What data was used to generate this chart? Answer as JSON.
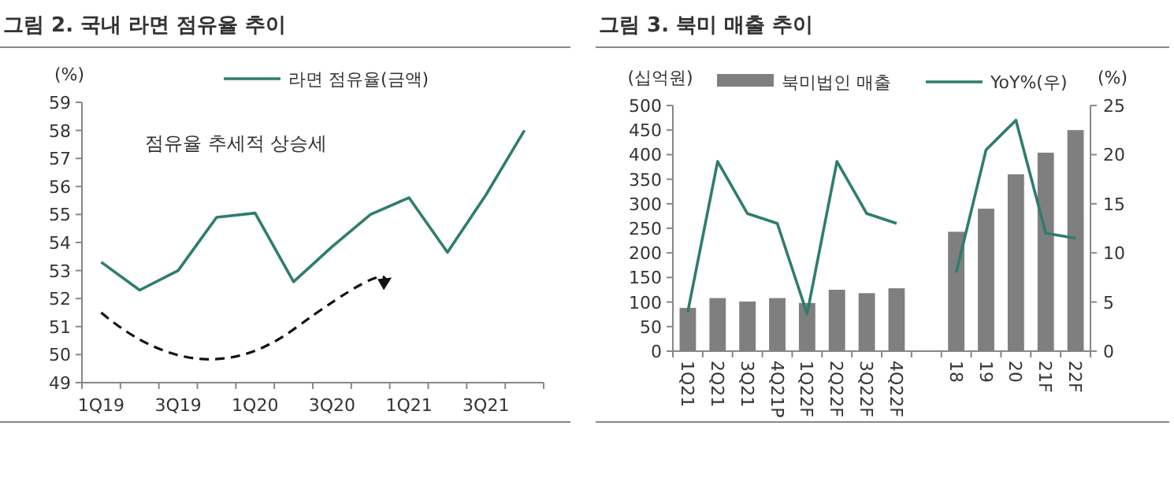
{
  "chart_data": [
    {
      "type": "line",
      "title": "그림 2. 국내 라면 점유율 추이",
      "ylabel": "(%)",
      "categories": [
        "1Q19",
        null,
        "3Q19",
        null,
        "1Q20",
        null,
        "3Q20",
        null,
        "1Q21",
        null,
        "3Q21",
        null
      ],
      "series": [
        {
          "name": "라면 점유율(금액)",
          "color": "#2e7d6e",
          "values": [
            53.3,
            52.3,
            53.0,
            54.9,
            55.05,
            52.6,
            53.85,
            55.0,
            55.6,
            53.65,
            55.7,
            58.0
          ]
        }
      ],
      "ylim": [
        49,
        59
      ],
      "yticks": [
        49,
        50,
        51,
        52,
        53,
        54,
        55,
        56,
        57,
        58,
        59
      ],
      "legend": "top",
      "annotations": [
        "점유율 추세적 상승세"
      ]
    },
    {
      "type": "bar",
      "title": "그림 3. 북미 매출 추이",
      "ylabel": "(십억원)",
      "y2label": "(%)",
      "categories": [
        "1Q21",
        "2Q21",
        "3Q21",
        "4Q21P",
        "1Q22F",
        "2Q22F",
        "3Q22F",
        "4Q22F",
        null,
        "18",
        "19",
        "20",
        "21F",
        "22F"
      ],
      "series": [
        {
          "name": "북미법인 매출",
          "color": "#7f7f7f",
          "values": [
            88,
            108,
            101,
            108,
            98,
            125,
            118,
            128,
            null,
            243,
            290,
            360,
            404,
            450
          ]
        },
        {
          "name": "YoY%(우)",
          "type": "line",
          "axis": "y2",
          "color": "#2e7d6e",
          "values": [
            4,
            19.3,
            14,
            13,
            3.8,
            19.3,
            14,
            13,
            null,
            8,
            20.5,
            23.5,
            12,
            11.5
          ]
        }
      ],
      "ylim": [
        0,
        500
      ],
      "yticks": [
        0,
        50,
        100,
        150,
        200,
        250,
        300,
        350,
        400,
        450,
        500
      ],
      "y2lim": [
        0,
        25
      ],
      "y2ticks": [
        0,
        5,
        10,
        15,
        20,
        25
      ],
      "legend": "top"
    }
  ]
}
